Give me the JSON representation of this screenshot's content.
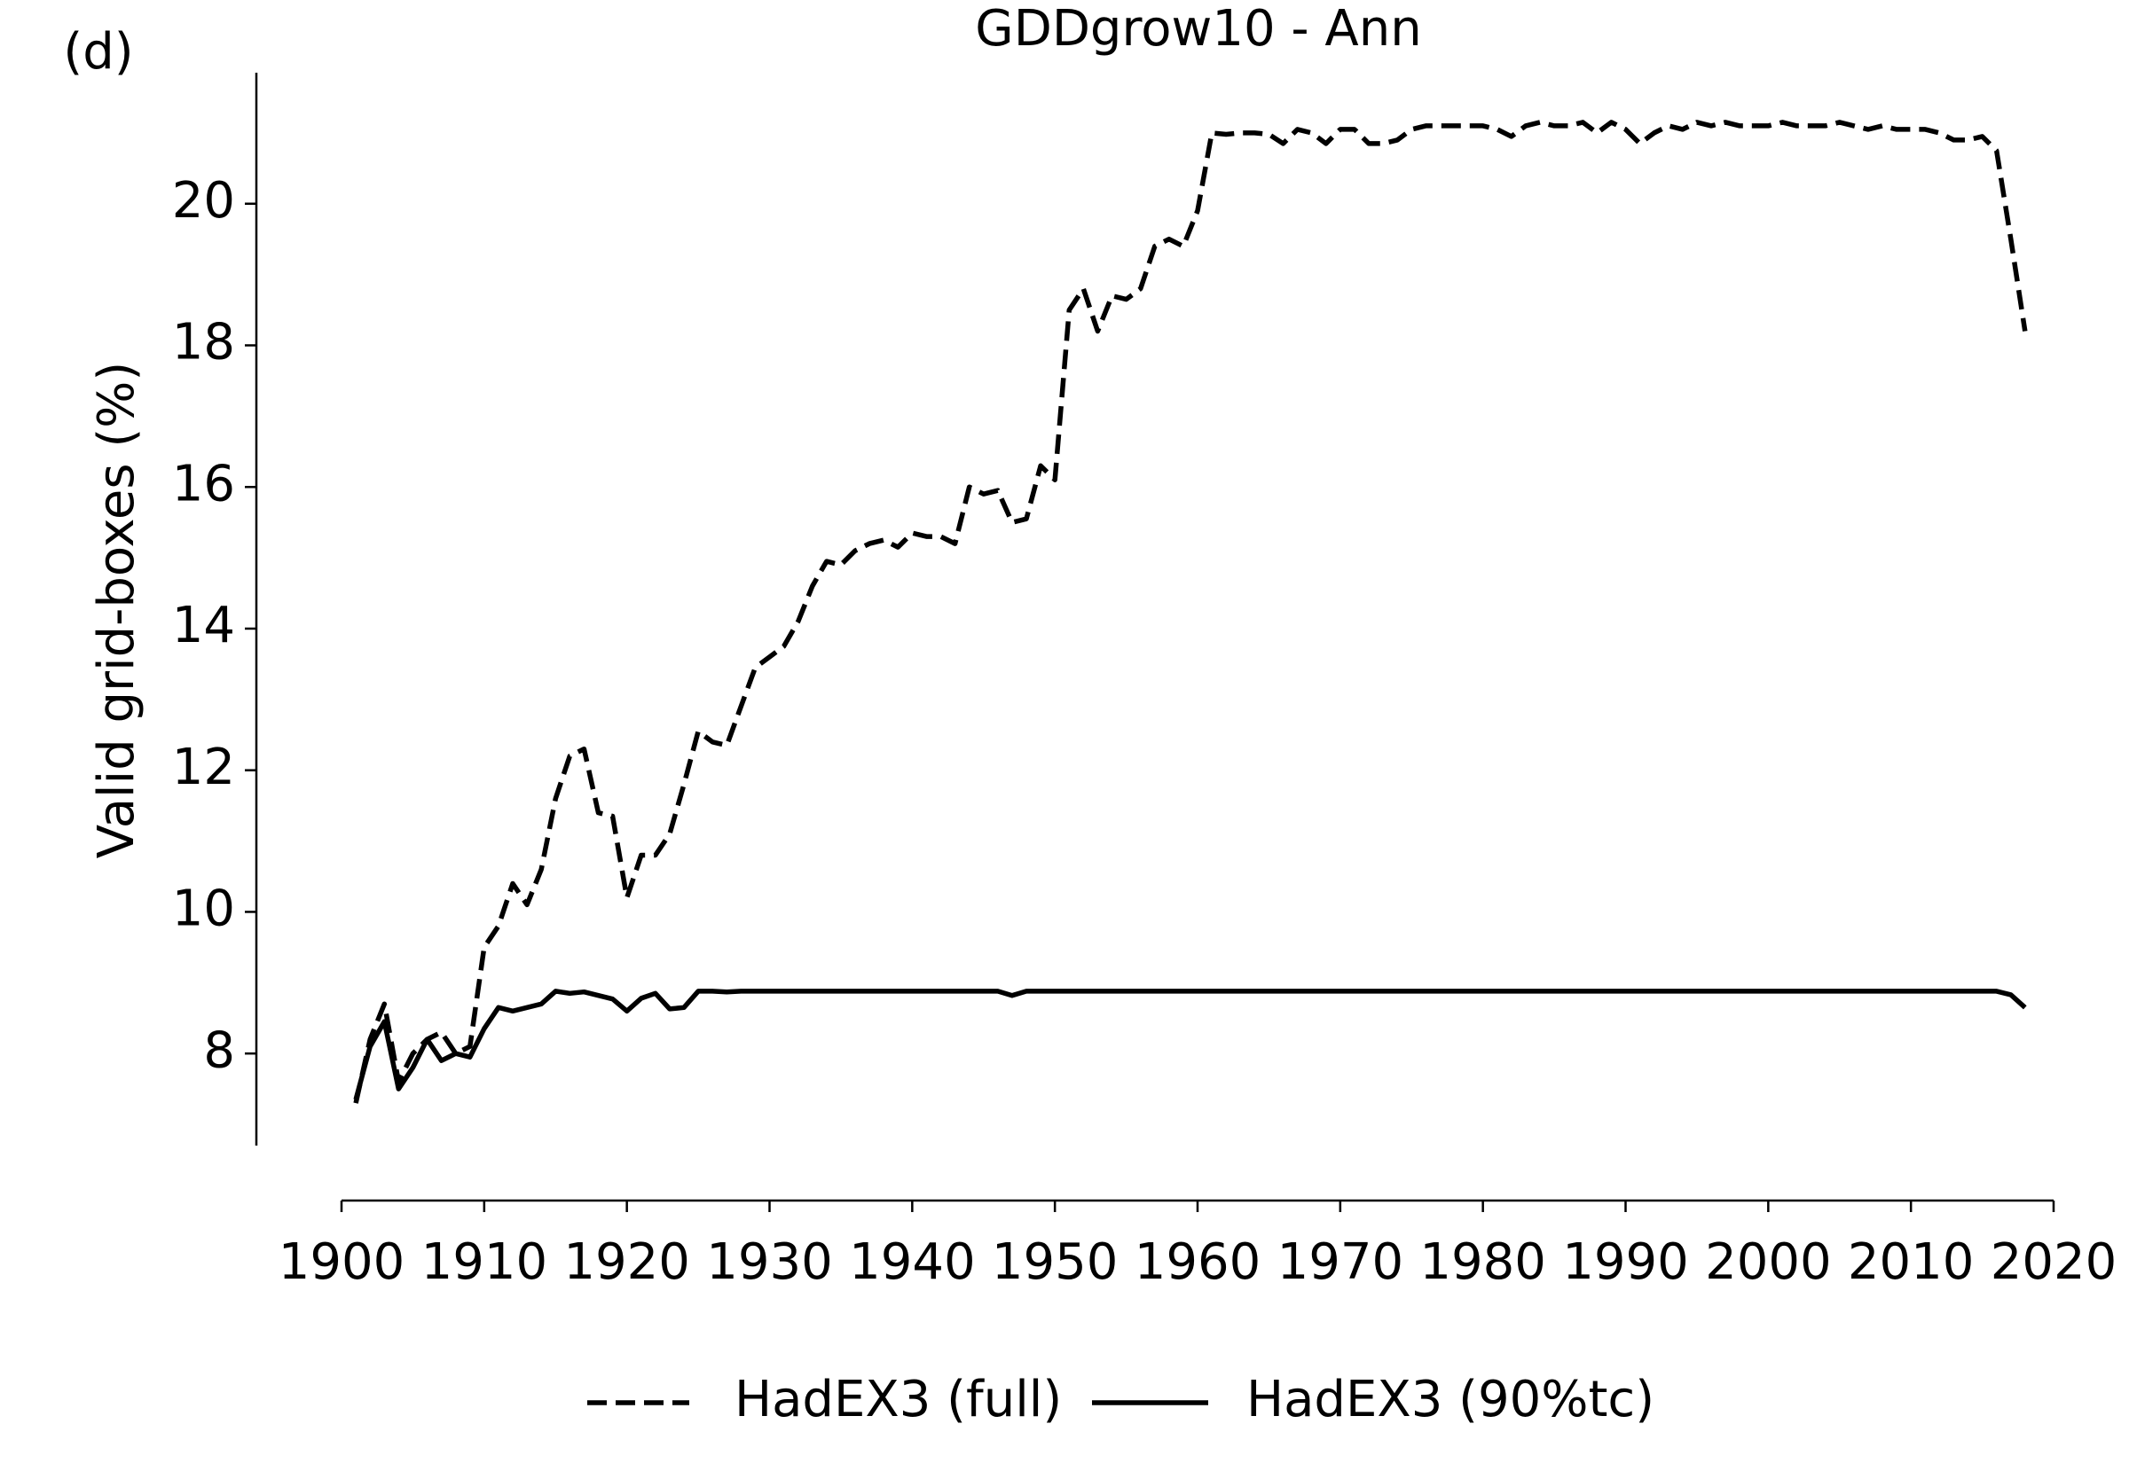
{
  "chart_data": {
    "type": "line",
    "panel_label": "(d)",
    "title": "GDDgrow10 - Ann",
    "y_label": "Valid grid-boxes (%)",
    "x": [
      1901,
      1902,
      1903,
      1904,
      1905,
      1906,
      1907,
      1908,
      1909,
      1910,
      1911,
      1912,
      1913,
      1914,
      1915,
      1916,
      1917,
      1918,
      1919,
      1920,
      1921,
      1922,
      1923,
      1924,
      1925,
      1926,
      1927,
      1928,
      1929,
      1930,
      1931,
      1932,
      1933,
      1934,
      1935,
      1936,
      1937,
      1938,
      1939,
      1940,
      1941,
      1942,
      1943,
      1944,
      1945,
      1946,
      1947,
      1948,
      1949,
      1950,
      1951,
      1952,
      1953,
      1954,
      1955,
      1956,
      1957,
      1958,
      1959,
      1960,
      1961,
      1962,
      1963,
      1964,
      1965,
      1966,
      1967,
      1968,
      1969,
      1970,
      1971,
      1972,
      1973,
      1974,
      1975,
      1976,
      1977,
      1978,
      1979,
      1980,
      1981,
      1982,
      1983,
      1984,
      1985,
      1986,
      1987,
      1988,
      1989,
      1990,
      1991,
      1992,
      1993,
      1994,
      1995,
      1996,
      1997,
      1998,
      1999,
      2000,
      2001,
      2002,
      2003,
      2004,
      2005,
      2006,
      2007,
      2008,
      2009,
      2010,
      2011,
      2012,
      2013,
      2014,
      2015,
      2016,
      2017,
      2018
    ],
    "series": [
      {
        "name": "HadEX3 (full)",
        "color": "#000000",
        "linestyle": "dashed",
        "values": [
          7.3,
          8.2,
          8.7,
          7.6,
          8.0,
          8.2,
          8.3,
          8.0,
          8.1,
          9.5,
          9.8,
          10.4,
          10.1,
          10.6,
          11.6,
          12.2,
          12.3,
          11.4,
          11.35,
          10.2,
          10.8,
          10.8,
          11.1,
          11.8,
          12.55,
          12.4,
          12.35,
          12.9,
          13.45,
          13.6,
          13.75,
          14.1,
          14.6,
          14.95,
          14.9,
          15.1,
          15.2,
          15.25,
          15.15,
          15.35,
          15.3,
          15.3,
          15.2,
          16.0,
          15.9,
          15.95,
          15.5,
          15.55,
          16.3,
          16.1,
          18.5,
          18.8,
          18.2,
          18.7,
          18.65,
          18.8,
          19.4,
          19.5,
          19.4,
          19.9,
          21.0,
          20.98,
          21.0,
          21.0,
          20.98,
          20.85,
          21.05,
          21.0,
          20.85,
          21.05,
          21.05,
          20.85,
          20.85,
          20.9,
          21.05,
          21.1,
          21.1,
          21.1,
          21.1,
          21.1,
          21.05,
          20.95,
          21.1,
          21.15,
          21.1,
          21.1,
          21.15,
          21.0,
          21.15,
          21.05,
          20.85,
          21.0,
          21.1,
          21.05,
          21.15,
          21.1,
          21.15,
          21.1,
          21.1,
          21.1,
          21.15,
          21.1,
          21.1,
          21.1,
          21.15,
          21.1,
          21.05,
          21.1,
          21.05,
          21.05,
          21.05,
          21.0,
          20.9,
          20.9,
          20.95,
          20.75,
          19.5,
          18.2
        ]
      },
      {
        "name": "HadEX3 (90%tc)",
        "color": "#000000",
        "linestyle": "solid",
        "values": [
          7.35,
          8.1,
          8.45,
          7.5,
          7.8,
          8.2,
          7.9,
          8.0,
          7.95,
          8.35,
          8.65,
          8.6,
          8.65,
          8.7,
          8.88,
          8.85,
          8.87,
          8.82,
          8.77,
          8.6,
          8.78,
          8.85,
          8.63,
          8.65,
          8.88,
          8.88,
          8.87,
          8.88,
          8.88,
          8.88,
          8.88,
          8.88,
          8.88,
          8.88,
          8.88,
          8.88,
          8.88,
          8.88,
          8.88,
          8.88,
          8.88,
          8.88,
          8.88,
          8.88,
          8.88,
          8.88,
          8.82,
          8.88,
          8.88,
          8.88,
          8.88,
          8.88,
          8.88,
          8.88,
          8.88,
          8.88,
          8.88,
          8.88,
          8.88,
          8.88,
          8.88,
          8.88,
          8.88,
          8.88,
          8.88,
          8.88,
          8.88,
          8.88,
          8.88,
          8.88,
          8.88,
          8.88,
          8.88,
          8.88,
          8.88,
          8.88,
          8.88,
          8.88,
          8.88,
          8.88,
          8.88,
          8.88,
          8.88,
          8.88,
          8.88,
          8.88,
          8.88,
          8.88,
          8.88,
          8.88,
          8.88,
          8.88,
          8.88,
          8.88,
          8.88,
          8.88,
          8.88,
          8.88,
          8.88,
          8.88,
          8.88,
          8.88,
          8.88,
          8.88,
          8.88,
          8.88,
          8.88,
          8.88,
          8.88,
          8.88,
          8.88,
          8.88,
          8.88,
          8.88,
          8.88,
          8.88,
          8.83,
          8.65
        ]
      }
    ],
    "xlim": [
      1900,
      2020
    ],
    "xticks": [
      1900,
      1910,
      1920,
      1930,
      1940,
      1950,
      1960,
      1970,
      1980,
      1990,
      2000,
      2010,
      2020
    ],
    "ylim": [
      6.7,
      21.85
    ],
    "yticks": [
      8,
      10,
      12,
      14,
      16,
      18,
      20
    ],
    "grid": false,
    "legend": "bottom"
  }
}
